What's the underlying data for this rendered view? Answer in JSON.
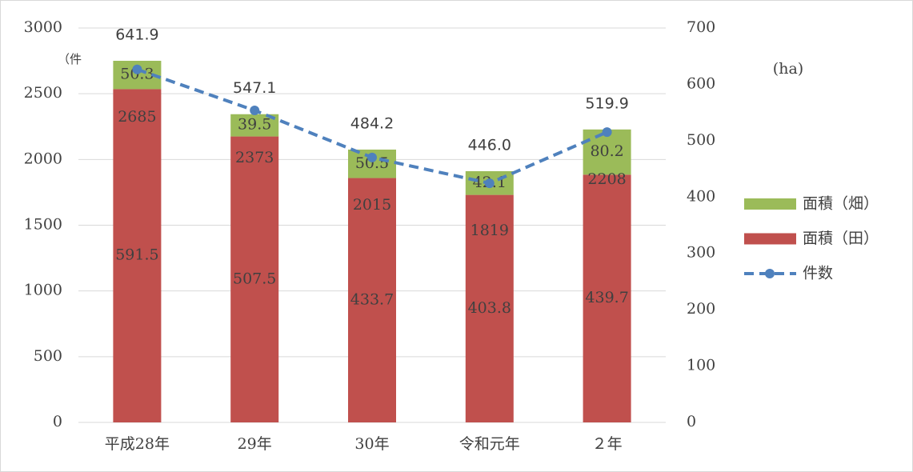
{
  "chart_data": {
    "type": "bar",
    "stacked": true,
    "categories": [
      "平成28年",
      "29年",
      "30年",
      "令和元年",
      "２年"
    ],
    "y_label": "（件",
    "y2_label": "(ha)",
    "ylim": [
      0,
      3000
    ],
    "yticks": [
      0,
      500,
      1000,
      1500,
      2000,
      2500,
      3000
    ],
    "y2lim": [
      0,
      700
    ],
    "y2ticks": [
      0,
      100,
      200,
      300,
      400,
      500,
      600,
      700
    ],
    "grid": true,
    "legend": "right",
    "series": [
      {
        "name": "面積（田）",
        "color": "#c0504d",
        "axis": "y2",
        "values": [
          591.5,
          507.5,
          433.7,
          403.8,
          439.7
        ]
      },
      {
        "name": "面積（畑）",
        "color": "#9bbb59",
        "axis": "y2",
        "values": [
          50.3,
          39.5,
          50.5,
          42.1,
          80.2
        ]
      },
      {
        "name": "件数",
        "color": "#4f81bd",
        "type": "line",
        "values": [
          2685,
          2373,
          2015,
          1819,
          2208
        ]
      }
    ],
    "totals": {
      "axis": "y2",
      "values": [
        641.9,
        547.1,
        484.2,
        446.0,
        519.9
      ],
      "value_labels": [
        "641.9",
        "547.1",
        "484.2",
        "446.0",
        "519.9"
      ]
    }
  }
}
